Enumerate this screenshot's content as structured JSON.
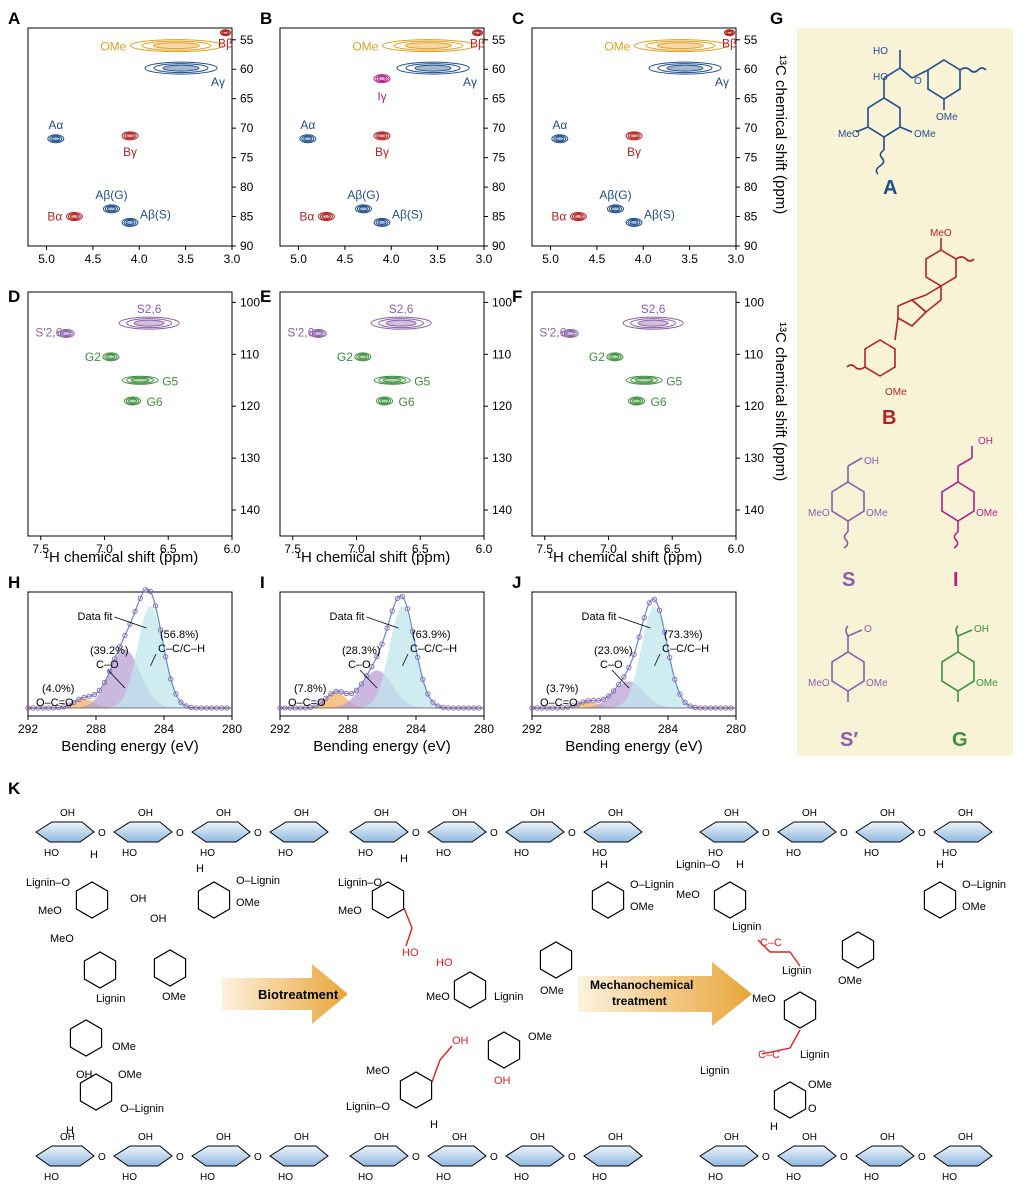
{
  "panel_letters": [
    "A",
    "B",
    "C",
    "D",
    "E",
    "F",
    "G",
    "H",
    "I",
    "J",
    "K"
  ],
  "axis": {
    "nmr_x_label": "¹H chemical shift (ppm)",
    "nmr_y_label": "¹³C chemical shift (ppm)",
    "xps_x_label": "Bending energy (eV)"
  },
  "colors": {
    "A": "#1f4e8c",
    "B": "#b22222",
    "S": "#8a5fa8",
    "I": "#b0238a",
    "G": "#3c8f3c",
    "OMe": "#e0a020",
    "grey": "#8c8c8c",
    "structure_bg": "#f8f3d6"
  },
  "nmr_top": {
    "x_ticks": [
      "5.0",
      "4.5",
      "4.0",
      "3.5",
      "3.0"
    ],
    "y_ticks": [
      "55",
      "60",
      "65",
      "70",
      "75",
      "80",
      "85",
      "90"
    ],
    "xlim": [
      5.2,
      3.0
    ],
    "ylim": [
      53,
      90
    ]
  },
  "nmr_mid": {
    "x_ticks": [
      "7.5",
      "7.0",
      "6.5",
      "6.0"
    ],
    "y_ticks": [
      "100",
      "110",
      "120",
      "130",
      "140"
    ],
    "xlim": [
      7.6,
      6.0
    ],
    "ylim": [
      98,
      145
    ]
  },
  "xps": {
    "x_ticks": [
      "292",
      "288",
      "284",
      "280"
    ],
    "xlim": [
      292,
      280
    ],
    "labels": {
      "data_fit": "Data fit",
      "occ": "O–C=O",
      "co": "C–O",
      "cc": "C–C/C–H"
    }
  },
  "chart_data": [
    {
      "type": "scatter",
      "panel": "A",
      "xlim": [
        5.2,
        3.0
      ],
      "ylim": [
        53,
        90
      ],
      "x_ticks": [
        "5.0",
        "4.5",
        "4.0",
        "3.5",
        "3.0"
      ],
      "y_ticks": [
        "55",
        "60",
        "65",
        "70",
        "75",
        "80",
        "85",
        "90"
      ],
      "points": [
        {
          "label": "OMe",
          "x": 3.6,
          "y": 56
        },
        {
          "label": "Bβ",
          "x": 3.07,
          "y": 53.8
        },
        {
          "label": "Aγ",
          "x": 3.55,
          "y": 59.8
        },
        {
          "label": "Aα",
          "x": 4.9,
          "y": 71.8
        },
        {
          "label": "Bγ",
          "x": 4.1,
          "y": 71.3
        },
        {
          "label": "Aβ(G)",
          "x": 4.3,
          "y": 83.7
        },
        {
          "label": "Aβ(S)",
          "x": 4.1,
          "y": 86.0
        },
        {
          "label": "Bα",
          "x": 4.7,
          "y": 85.0
        }
      ]
    },
    {
      "type": "scatter",
      "panel": "B",
      "xlim": [
        5.2,
        3.0
      ],
      "ylim": [
        53,
        90
      ],
      "points": [
        {
          "label": "OMe",
          "x": 3.6,
          "y": 56
        },
        {
          "label": "Bβ",
          "x": 3.07,
          "y": 53.8
        },
        {
          "label": "Aγ",
          "x": 3.55,
          "y": 59.8
        },
        {
          "label": "Iγ",
          "x": 4.1,
          "y": 61.6
        },
        {
          "label": "Aα",
          "x": 4.9,
          "y": 71.8
        },
        {
          "label": "Bγ",
          "x": 4.1,
          "y": 71.3
        },
        {
          "label": "Aβ(G)",
          "x": 4.3,
          "y": 83.7
        },
        {
          "label": "Aβ(S)",
          "x": 4.1,
          "y": 86.0
        },
        {
          "label": "Bα",
          "x": 4.7,
          "y": 85.0
        }
      ]
    },
    {
      "type": "scatter",
      "panel": "C",
      "xlim": [
        5.2,
        3.0
      ],
      "ylim": [
        53,
        90
      ],
      "points": [
        {
          "label": "OMe",
          "x": 3.6,
          "y": 56
        },
        {
          "label": "Bβ",
          "x": 3.07,
          "y": 53.8
        },
        {
          "label": "Aγ",
          "x": 3.55,
          "y": 59.8
        },
        {
          "label": "Aα",
          "x": 4.9,
          "y": 71.8
        },
        {
          "label": "Bγ",
          "x": 4.1,
          "y": 71.3
        },
        {
          "label": "Aβ(G)",
          "x": 4.3,
          "y": 83.7
        },
        {
          "label": "Aβ(S)",
          "x": 4.1,
          "y": 86.0
        },
        {
          "label": "Bα",
          "x": 4.7,
          "y": 85.0
        }
      ]
    },
    {
      "type": "scatter",
      "panel": "D",
      "xlim": [
        7.6,
        6.0
      ],
      "ylim": [
        98,
        145
      ],
      "x_ticks": [
        "7.5",
        "7.0",
        "6.5",
        "6.0"
      ],
      "y_ticks": [
        "100",
        "110",
        "120",
        "130",
        "140"
      ],
      "points": [
        {
          "label": "S2,6",
          "x": 6.65,
          "y": 104
        },
        {
          "label": "S′2,6",
          "x": 7.3,
          "y": 106
        },
        {
          "label": "G2",
          "x": 6.95,
          "y": 110.5
        },
        {
          "label": "G5",
          "x": 6.72,
          "y": 115
        },
        {
          "label": "G6",
          "x": 6.78,
          "y": 119
        }
      ]
    },
    {
      "type": "scatter",
      "panel": "E",
      "xlim": [
        7.6,
        6.0
      ],
      "ylim": [
        98,
        145
      ],
      "points": [
        {
          "label": "S2,6",
          "x": 6.65,
          "y": 104
        },
        {
          "label": "S′2,6",
          "x": 7.3,
          "y": 106
        },
        {
          "label": "G2",
          "x": 6.95,
          "y": 110.5
        },
        {
          "label": "G5",
          "x": 6.72,
          "y": 115
        },
        {
          "label": "G6",
          "x": 6.78,
          "y": 119
        }
      ]
    },
    {
      "type": "scatter",
      "panel": "F",
      "xlim": [
        7.6,
        6.0
      ],
      "ylim": [
        98,
        145
      ],
      "points": [
        {
          "label": "S2,6",
          "x": 6.65,
          "y": 104
        },
        {
          "label": "S′2,6",
          "x": 7.3,
          "y": 106
        },
        {
          "label": "G2",
          "x": 6.95,
          "y": 110.5
        },
        {
          "label": "G5",
          "x": 6.72,
          "y": 115
        },
        {
          "label": "G6",
          "x": 6.78,
          "y": 119
        }
      ]
    },
    {
      "type": "area",
      "panel": "H",
      "xlim": [
        292,
        280
      ],
      "x_ticks": [
        "292",
        "288",
        "284",
        "280"
      ],
      "xlabel": "Bending energy (eV)",
      "components": [
        {
          "name": "O–C=O",
          "percent": "(4.0%)",
          "center": 288.7
        },
        {
          "name": "C–O",
          "percent": "(39.2%)",
          "center": 286.3
        },
        {
          "name": "C–C/C–H",
          "percent": "(56.8%)",
          "center": 284.8
        }
      ]
    },
    {
      "type": "area",
      "panel": "I",
      "xlim": [
        292,
        280
      ],
      "components": [
        {
          "name": "O–C=O",
          "percent": "(7.8%)",
          "center": 288.7
        },
        {
          "name": "C–O",
          "percent": "(28.3%)",
          "center": 286.3
        },
        {
          "name": "C–C/C–H",
          "percent": "(63.9%)",
          "center": 284.8
        }
      ]
    },
    {
      "type": "area",
      "panel": "J",
      "xlim": [
        292,
        280
      ],
      "components": [
        {
          "name": "O–C=O",
          "percent": "(3.7%)",
          "center": 288.7
        },
        {
          "name": "C–O",
          "percent": "(23.0%)",
          "center": 286.3
        },
        {
          "name": "C–C/C–H",
          "percent": "(73.3%)",
          "center": 284.8
        }
      ]
    }
  ],
  "structures": {
    "A": "A",
    "B": "B",
    "S": "S",
    "I": "I",
    "Sp": "S′",
    "G": "G",
    "labels": {
      "HO": "HO",
      "OH": "OH",
      "OMe": "OMe",
      "MeO": "MeO",
      "O": "O"
    }
  },
  "schematic": {
    "arrow1": "Biotreatment",
    "arrow2_line1": "Mechanochemical",
    "arrow2_line2": "treatment",
    "lignin": "Lignin",
    "lignin_o": "Lignin–O",
    "o_lignin": "O–Lignin",
    "meo": "MeO",
    "ome": "OMe",
    "oh": "OH",
    "ho": "HO",
    "h": "H",
    "o": "O",
    "cc": "C–C"
  }
}
